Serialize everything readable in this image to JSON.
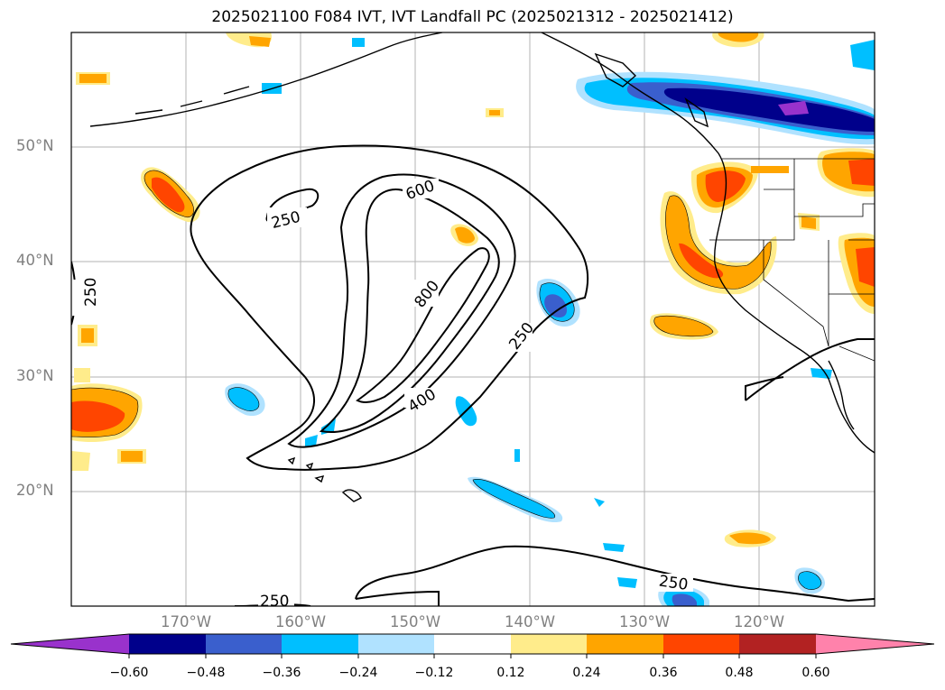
{
  "title": "2025021100 F084 IVT, IVT Landfall PC (2025021312 - 2025021412)",
  "map": {
    "lat_labels": [
      "50°N",
      "40°N",
      "30°N",
      "20°N"
    ],
    "lon_labels": [
      "170°W",
      "160°W",
      "150°W",
      "140°W",
      "130°W",
      "120°W"
    ],
    "ivt_contour_labels": [
      "250",
      "600",
      "800",
      "400",
      "250",
      "250",
      "250",
      "250"
    ]
  },
  "colorbar": {
    "ticks": [
      "−0.60",
      "−0.48",
      "−0.36",
      "−0.24",
      "−0.12",
      "0.12",
      "0.24",
      "0.36",
      "0.48",
      "0.60"
    ],
    "colors": [
      "#9932CC",
      "#00008B",
      "#3A5FCD",
      "#00BFFF",
      "#B0E2FF",
      "#FFFFFF",
      "#FFEC8B",
      "#FFA500",
      "#FF4500",
      "#B22222",
      "#FF82AB"
    ]
  }
}
